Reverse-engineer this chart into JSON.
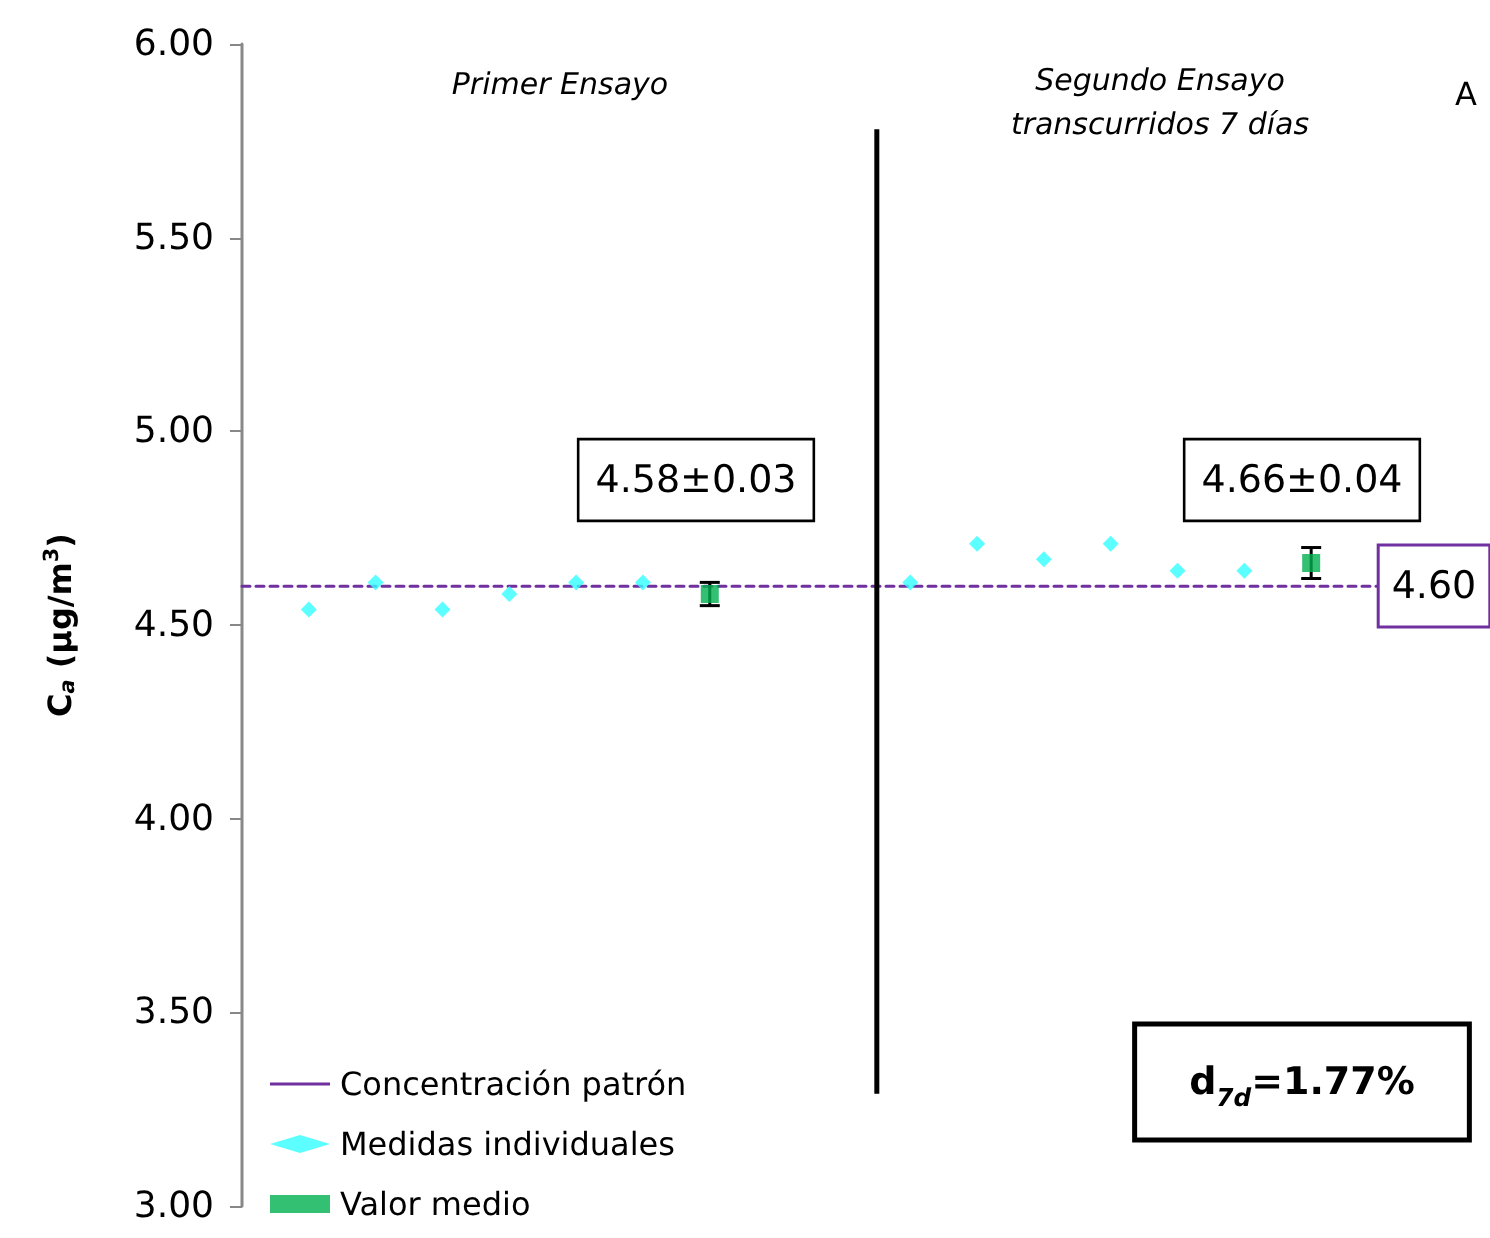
{
  "chart_data": {
    "type": "scatter",
    "ylabel": "C$_{a}$ (µg/m$^{3}$)",
    "categories": [
      null,
      null,
      null,
      null,
      null,
      null,
      null,
      null,
      null,
      null,
      null,
      null,
      null,
      null,
      null,
      null,
      null,
      null
    ],
    "ylim": [
      3,
      6
    ],
    "yticks": [
      {
        "value": 3,
        "label": "3.00"
      },
      {
        "value": 3.5,
        "label": "3.50"
      },
      {
        "value": 4,
        "label": "4.00"
      },
      {
        "value": 4.5,
        "label": "4.50"
      },
      {
        "value": 5,
        "label": "5.00"
      },
      {
        "value": 5.5,
        "label": "5.50"
      },
      {
        "value": 6,
        "label": "6.00"
      }
    ],
    "tick_labels": "y",
    "grid": false,
    "legend": "bottom left",
    "series": [
      {
        "name": "Concentración patrón",
        "type": "line",
        "color": "#7030a0",
        "line_style": "dashed",
        "marker": "none",
        "values": [
          4.6,
          4.6,
          4.6,
          4.6,
          4.6,
          4.6,
          4.6,
          4.6,
          4.6,
          4.6,
          4.6,
          4.6,
          4.6,
          4.6,
          4.6,
          4.6,
          4.6,
          4.6
        ]
      },
      {
        "name": "Medidas individuales",
        "color": "#33ffff",
        "marker": "diamond",
        "values": [
          null,
          4.54,
          4.61,
          4.54,
          4.58,
          4.61,
          4.61,
          null,
          null,
          null,
          4.61,
          4.71,
          4.67,
          4.71,
          4.64,
          4.64,
          null,
          null
        ]
      },
      {
        "name": "Valor medio",
        "color": "#00b050",
        "marker": "square",
        "values": [
          null,
          null,
          null,
          null,
          null,
          null,
          null,
          4.58,
          null,
          null,
          null,
          null,
          null,
          null,
          null,
          null,
          4.66,
          null
        ],
        "errors": [
          null,
          null,
          null,
          null,
          null,
          null,
          null,
          0.03,
          null,
          null,
          null,
          null,
          null,
          null,
          null,
          null,
          0.04,
          null
        ]
      }
    ],
    "annotations": [
      "Primer Ensayo",
      "Segundo Ensayo\ntranscurridos 7 días",
      "A",
      "4.58±0.03",
      "4.66±0.04",
      "4.60",
      "d$_{7d}$=1.77%"
    ]
  }
}
